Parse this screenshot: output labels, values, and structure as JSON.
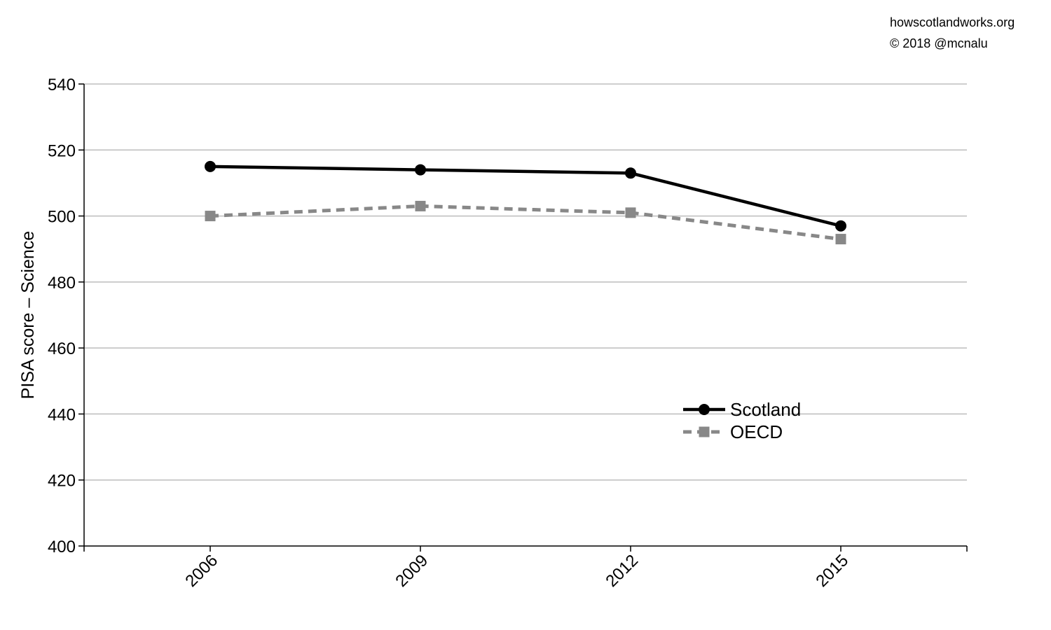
{
  "credits": {
    "site": "howscotlandworks.org",
    "copyright": "© 2018  @mcnalu"
  },
  "chart_data": {
    "type": "line",
    "title": "",
    "xlabel": "",
    "ylabel": "PISA score – Science",
    "x": [
      "2006",
      "2009",
      "2012",
      "2015"
    ],
    "ylim": [
      400,
      540
    ],
    "yticks": [
      400,
      420,
      440,
      460,
      480,
      500,
      520,
      540
    ],
    "grid": true,
    "legend_position": "lower-right",
    "series": [
      {
        "name": "Scotland",
        "values": [
          515,
          514,
          513,
          497
        ],
        "color": "#000000",
        "marker": "circle",
        "line": "solid"
      },
      {
        "name": "OECD",
        "values": [
          500,
          503,
          501,
          493
        ],
        "color": "#888888",
        "marker": "square",
        "line": "dashed"
      }
    ]
  }
}
